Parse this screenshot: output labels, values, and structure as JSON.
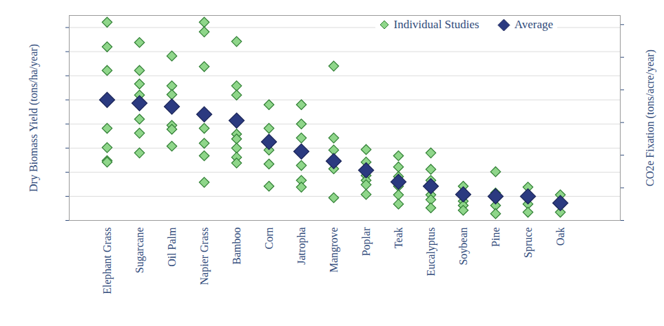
{
  "chart_data": {
    "type": "scatter",
    "y_label": "Dry Biomass Yield (tons/ha/year)",
    "y2_label": "CO2e Fixation (tons/acre/year)",
    "categories": [
      "Elephant Grass",
      "Sugarcane",
      "Oil Palm",
      "Napier Grass",
      "Bamboo",
      "Corn",
      "Jatropha",
      "Mangrove",
      "Poplar",
      "Teak",
      "Eucalyptus",
      "Soybean",
      "Pine",
      "Spruce",
      "Oak"
    ],
    "series": [
      {
        "name": "Individual Studies",
        "color": "#8fd68a",
        "marker": "diamond",
        "values": [
          [
            41.1,
            36,
            31.1,
            19.1,
            15.1,
            12.4,
            12.1
          ],
          [
            36.9,
            31.1,
            28.3,
            26,
            21,
            18.1,
            14
          ],
          [
            34.1,
            27.9,
            26.1,
            19.7,
            18.9,
            15.4
          ],
          [
            41.1,
            39.1,
            31.9,
            19.1,
            16,
            13.4,
            7.9
          ],
          [
            37.1,
            27.9,
            26,
            17.9,
            16.9,
            15,
            13.1,
            11.9
          ],
          [
            24,
            19.1,
            14.6,
            11.7,
            7.1
          ],
          [
            24,
            20,
            17.1,
            11.4,
            8.3,
            6.9
          ],
          [
            32,
            17.1,
            14.6,
            10.7,
            4.7
          ],
          [
            14.7,
            12.1,
            9.3,
            8.3,
            7.4,
            5.4
          ],
          [
            13.4,
            11.1,
            9.1,
            7.1,
            5.3,
            3.4
          ],
          [
            14,
            10.6,
            8.3,
            6.9,
            5.3,
            4.3,
            2.6
          ],
          [
            7.1,
            5.7,
            4,
            3.1,
            2.1
          ],
          [
            10.1,
            5.7,
            5,
            3.1,
            1.4
          ],
          [
            6.9,
            5.4,
            3.4,
            1.7
          ],
          [
            5.3,
            3.1,
            1.7
          ]
        ]
      },
      {
        "name": "Average",
        "color": "#2b3a80",
        "marker": "diamond",
        "values": [
          25,
          24.3,
          23.6,
          22,
          20.7,
          16.3,
          14.3,
          12.3,
          10.4,
          8,
          7.1,
          5.4,
          5,
          5,
          3.6
        ]
      }
    ],
    "ylim": [
      0,
      42.5
    ],
    "yticks": [
      0,
      5,
      10,
      15,
      20,
      25,
      30,
      35,
      40
    ],
    "y2lim": [
      0,
      31.4
    ],
    "y2ticks": [
      0,
      5,
      10,
      15,
      20,
      25,
      30
    ],
    "grid": true,
    "legend": "top-right",
    "tick_labels": "x"
  }
}
